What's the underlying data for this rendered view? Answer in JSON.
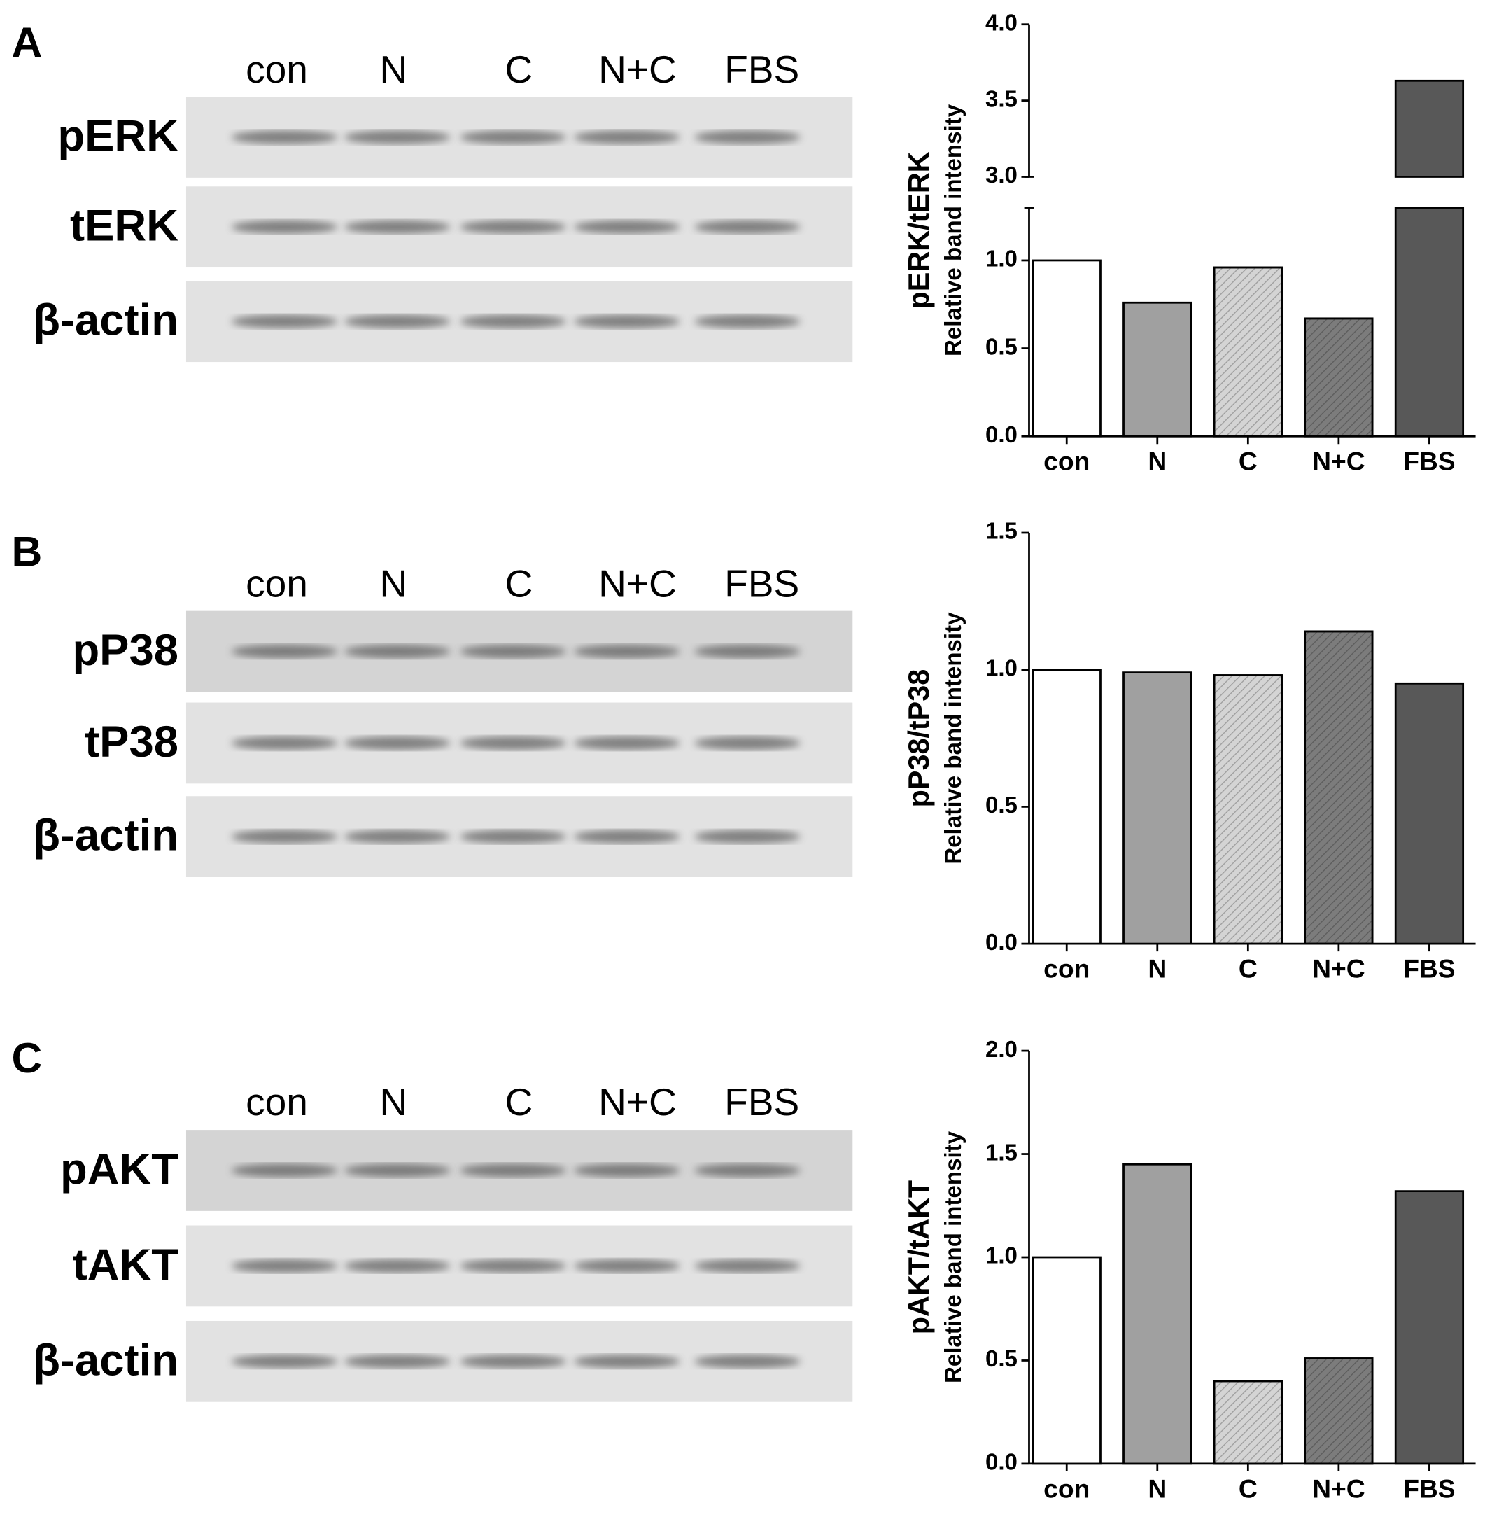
{
  "chart_data": [
    {
      "type": "bar",
      "panel": "A",
      "blot": {
        "lanes": [
          "con",
          "N",
          "C",
          "N+C",
          "FBS"
        ],
        "rows": [
          "pERK",
          "tERK",
          "β-actin"
        ]
      },
      "ylabel": "pERK/tERK",
      "ylabel_sub": "Relative band intensity",
      "categories": [
        "con",
        "N",
        "C",
        "N+C",
        "FBS"
      ],
      "values": [
        1.0,
        0.76,
        0.96,
        0.67,
        3.63
      ],
      "colors": [
        "#ffffff",
        "#a0a0a0",
        "#d4d4d4",
        "#7c7c7c",
        "#585858"
      ],
      "hatch": [
        false,
        false,
        true,
        true,
        false
      ],
      "ylim": [
        0,
        4.0
      ],
      "y_break": [
        1.3,
        3.0
      ],
      "yticks": [
        {
          "value": 0,
          "label": "0.0"
        },
        {
          "value": 0.5,
          "label": "0.5"
        },
        {
          "value": 1.0,
          "label": "1.0"
        },
        {
          "value": 3.0,
          "label": "3.0"
        },
        {
          "value": 3.5,
          "label": "3.5"
        },
        {
          "value": 4.0,
          "label": "4.0"
        }
      ]
    },
    {
      "type": "bar",
      "panel": "B",
      "blot": {
        "lanes": [
          "con",
          "N",
          "C",
          "N+C",
          "FBS"
        ],
        "rows": [
          "pP38",
          "tP38",
          "β-actin"
        ]
      },
      "ylabel": "pP38/tP38",
      "ylabel_sub": "Relative band intensity",
      "categories": [
        "con",
        "N",
        "C",
        "N+C",
        "FBS"
      ],
      "values": [
        1.0,
        0.99,
        0.98,
        1.14,
        0.95
      ],
      "colors": [
        "#ffffff",
        "#a0a0a0",
        "#d4d4d4",
        "#7c7c7c",
        "#585858"
      ],
      "hatch": [
        false,
        false,
        true,
        true,
        false
      ],
      "ylim": [
        0,
        1.5
      ],
      "yticks": [
        {
          "value": 0,
          "label": "0.0"
        },
        {
          "value": 0.5,
          "label": "0.5"
        },
        {
          "value": 1.0,
          "label": "1.0"
        },
        {
          "value": 1.5,
          "label": "1.5"
        }
      ]
    },
    {
      "type": "bar",
      "panel": "C",
      "blot": {
        "lanes": [
          "con",
          "N",
          "C",
          "N+C",
          "FBS"
        ],
        "rows": [
          "pAKT",
          "tAKT",
          "β-actin"
        ]
      },
      "ylabel": "pAKT/tAKT",
      "ylabel_sub": "Relative band intensity",
      "categories": [
        "con",
        "N",
        "C",
        "N+C",
        "FBS"
      ],
      "values": [
        1.0,
        1.45,
        0.4,
        0.51,
        1.32
      ],
      "colors": [
        "#ffffff",
        "#a0a0a0",
        "#d4d4d4",
        "#7c7c7c",
        "#585858"
      ],
      "hatch": [
        false,
        false,
        true,
        true,
        false
      ],
      "ylim": [
        0,
        2.0
      ],
      "yticks": [
        {
          "value": 0,
          "label": "0.0"
        },
        {
          "value": 0.5,
          "label": "0.5"
        },
        {
          "value": 1.0,
          "label": "1.0"
        },
        {
          "value": 1.5,
          "label": "1.5"
        },
        {
          "value": 2.0,
          "label": "2.0"
        }
      ]
    }
  ]
}
